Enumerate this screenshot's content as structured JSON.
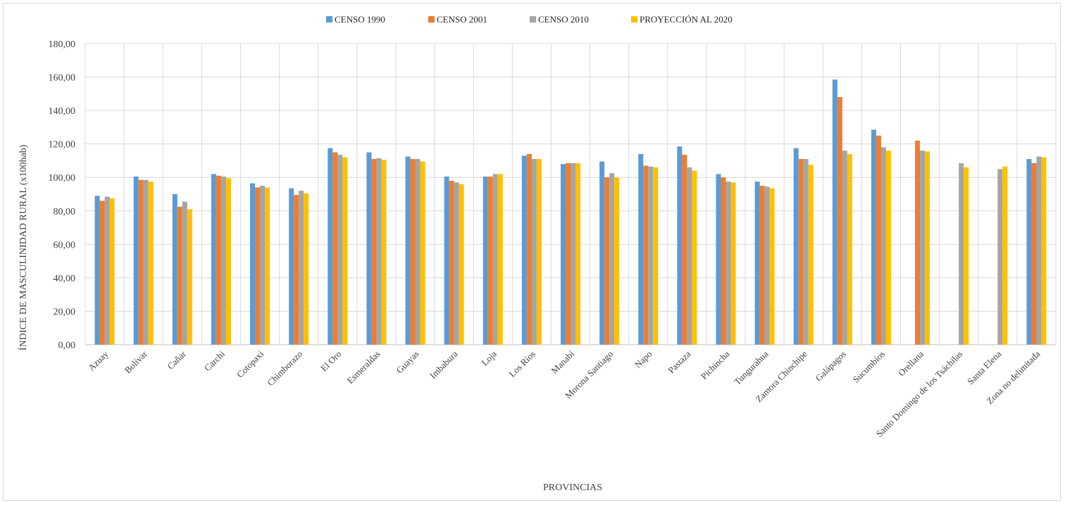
{
  "chart_data": {
    "type": "bar",
    "title": "",
    "xlabel": "PROVINCIAS",
    "ylabel": "ÍNDICE DE MASCULINIDAD RURAL (x100hab)",
    "ylim": [
      0,
      180
    ],
    "yticks": [
      "0,00",
      "20,00",
      "40,00",
      "60,00",
      "80,00",
      "100,00",
      "120,00",
      "140,00",
      "160,00",
      "180,00"
    ],
    "grid": true,
    "legend_position": "top",
    "categories": [
      "Azuay",
      "Bolívar",
      "Cañar",
      "Carchi",
      "Cotopaxi",
      "Chimborazo",
      "El Oro",
      "Esmeraldas",
      "Guayas",
      "Imbabura",
      "Loja",
      "Los Ríos",
      "Manabí",
      "Morona Santiago",
      "Napo",
      "Pastaza",
      "Pichincha",
      "Tungurahua",
      "Zamora Chinchipe",
      "Galápagos",
      "Sucumbíos",
      "Orellana",
      "Santo Domingo de los Tsáchilas",
      "Santa Elena",
      "Zona no delimitada"
    ],
    "series": [
      {
        "name": "CENSO 1990",
        "color": "#5b9bd5",
        "values": [
          89.0,
          100.5,
          90.0,
          102.0,
          96.5,
          93.5,
          117.5,
          115.0,
          112.5,
          100.5,
          100.5,
          113.0,
          108.0,
          109.5,
          114.0,
          118.5,
          102.0,
          97.5,
          117.5,
          158.5,
          128.5,
          null,
          null,
          null,
          111.0
        ]
      },
      {
        "name": "CENSO 2001",
        "color": "#ed7d31",
        "values": [
          86.0,
          98.5,
          82.5,
          101.0,
          94.0,
          89.5,
          115.0,
          111.0,
          111.0,
          98.0,
          100.5,
          114.0,
          108.5,
          100.0,
          107.0,
          113.5,
          100.0,
          95.0,
          111.0,
          148.0,
          125.0,
          122.0,
          null,
          null,
          108.5
        ]
      },
      {
        "name": "CENSO 2010",
        "color": "#a5a5a5",
        "values": [
          88.5,
          98.5,
          85.5,
          100.5,
          95.0,
          92.0,
          113.5,
          111.5,
          111.0,
          97.0,
          102.0,
          111.0,
          108.5,
          102.5,
          106.5,
          106.0,
          97.5,
          94.5,
          111.0,
          116.0,
          118.0,
          116.0,
          108.5,
          105.0,
          112.5
        ]
      },
      {
        "name": "PROYECCIÓN AL 2020",
        "color": "#ffc000",
        "values": [
          87.5,
          97.5,
          81.0,
          99.5,
          94.0,
          90.5,
          112.0,
          110.5,
          109.5,
          96.0,
          102.0,
          111.0,
          108.5,
          100.0,
          106.0,
          104.0,
          97.0,
          93.5,
          107.5,
          114.0,
          116.0,
          115.5,
          106.0,
          106.5,
          112.0
        ]
      }
    ]
  }
}
